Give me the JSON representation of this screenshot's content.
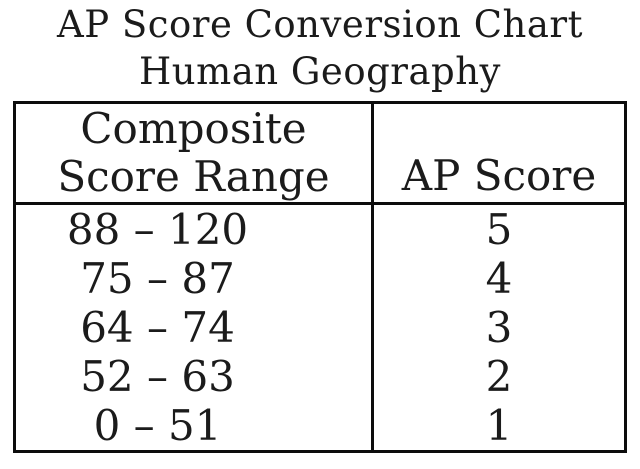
{
  "title": {
    "line1": "AP Score Conversion Chart",
    "line2": "Human Geography"
  },
  "table": {
    "header": {
      "col1_line1": "Composite",
      "col1_line2": "Score Range",
      "col2": "AP Score"
    },
    "rows": [
      {
        "range": "88 – 120",
        "score": "5"
      },
      {
        "range": "75 – 87",
        "score": "4"
      },
      {
        "range": "64 – 74",
        "score": "3"
      },
      {
        "range": "52 – 63",
        "score": "2"
      },
      {
        "range": "0 – 51",
        "score": "1"
      }
    ]
  },
  "colors": {
    "text": "#1b1b1b",
    "border": "#0c0c0c",
    "background": "#ffffff"
  },
  "chart_data": {
    "type": "table",
    "title": "AP Score Conversion Chart",
    "subtitle": "Human Geography",
    "columns": [
      "Composite Score Range",
      "AP Score"
    ],
    "rows": [
      [
        "88 – 120",
        5
      ],
      [
        "75 – 87",
        4
      ],
      [
        "64 – 74",
        3
      ],
      [
        "52 – 63",
        2
      ],
      [
        "0 – 51",
        1
      ]
    ]
  }
}
